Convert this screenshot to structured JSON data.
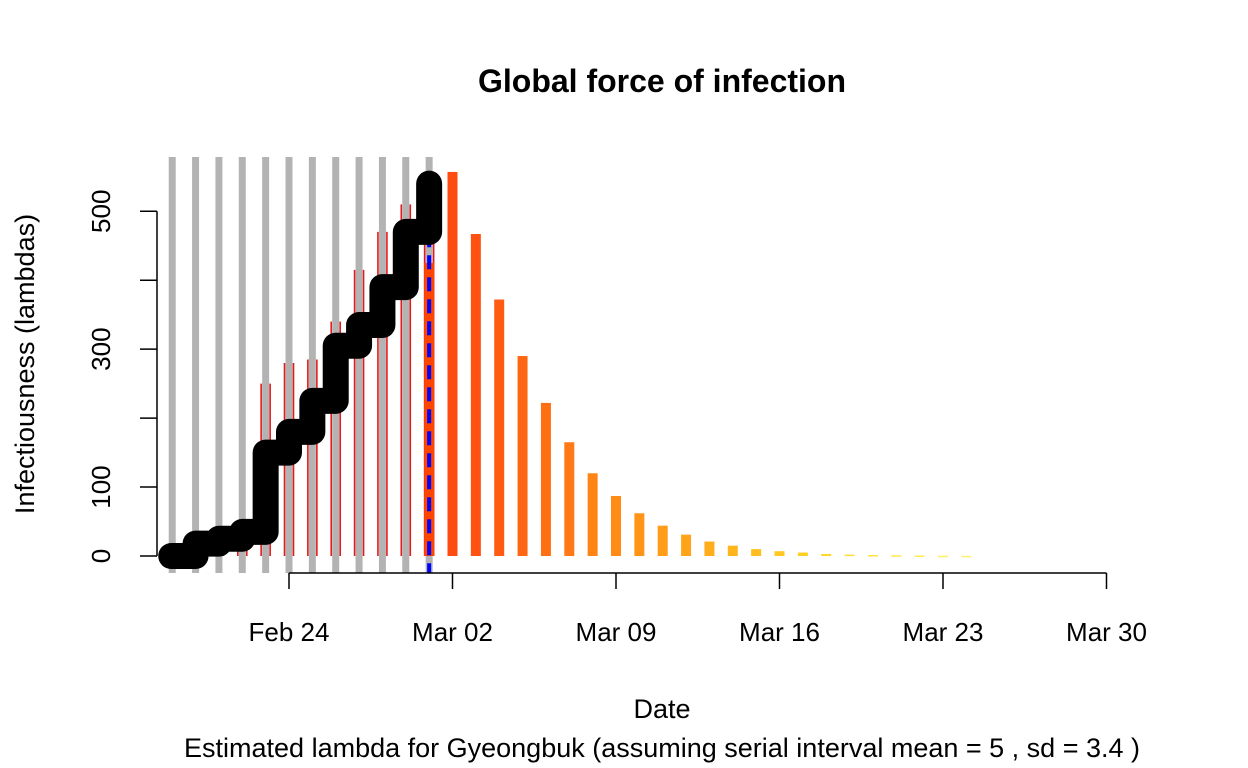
{
  "chart_data": {
    "type": "bar",
    "title": "Global force of infection",
    "xlabel": "Date",
    "ylabel": "Infectiousness (lambdas)",
    "subtitle": "Estimated lambda for Gyeongbuk (assuming serial interval mean = 5 , sd = 3.4 )",
    "x_ticks": [
      "Feb 24",
      "Mar 02",
      "Mar 09",
      "Mar 16",
      "Mar 23",
      "Mar 30"
    ],
    "y_ticks": [
      0,
      100,
      300,
      500
    ],
    "xlim": [
      "Feb 18",
      "Mar 30"
    ],
    "ylim": [
      -25,
      580
    ],
    "grid": false,
    "observed": {
      "dates": [
        "Feb 19",
        "Feb 20",
        "Feb 21",
        "Feb 22",
        "Feb 23",
        "Feb 24",
        "Feb 25",
        "Feb 26",
        "Feb 27",
        "Feb 28",
        "Feb 29",
        "Mar 01"
      ],
      "lambda_bars": [
        0,
        5,
        10,
        20,
        250,
        280,
        285,
        340,
        415,
        470,
        510,
        530
      ],
      "cumulative_line": [
        0,
        18,
        25,
        35,
        150,
        180,
        225,
        305,
        335,
        390,
        470,
        540
      ],
      "bar_color": "#E41A1C",
      "line_color": "#000000",
      "band_color": "#B3B3B3"
    },
    "projected": {
      "dates": [
        "Mar 01",
        "Mar 02",
        "Mar 03",
        "Mar 04",
        "Mar 05",
        "Mar 06",
        "Mar 07",
        "Mar 08",
        "Mar 09",
        "Mar 10",
        "Mar 11",
        "Mar 12",
        "Mar 13",
        "Mar 14",
        "Mar 15",
        "Mar 16",
        "Mar 17",
        "Mar 18",
        "Mar 19",
        "Mar 20",
        "Mar 21",
        "Mar 22",
        "Mar 23",
        "Mar 24"
      ],
      "values": [
        425,
        557,
        467,
        372,
        290,
        222,
        165,
        120,
        87,
        62,
        44,
        31,
        21,
        15,
        10,
        7,
        5,
        3,
        2,
        1.5,
        1,
        0.7,
        0.5,
        0.3
      ],
      "colors": [
        "#FF4500",
        "#FF4B0F",
        "#FF5212",
        "#FF5B13",
        "#FF6614",
        "#FF7015",
        "#FF7A16",
        "#FF8416",
        "#FF8C16",
        "#FF9417",
        "#FF9C18",
        "#FFA41A",
        "#FFAD1C",
        "#FFB61E",
        "#FFBF20",
        "#FFC822",
        "#FFD024",
        "#FFD72A",
        "#FFDD33",
        "#FFE23D",
        "#FFE748",
        "#FFEB55",
        "#FFEF62",
        "#FFF270"
      ]
    },
    "current_date_marker": {
      "date": "Mar 01",
      "color": "#0000FF",
      "style": "dashed"
    }
  }
}
